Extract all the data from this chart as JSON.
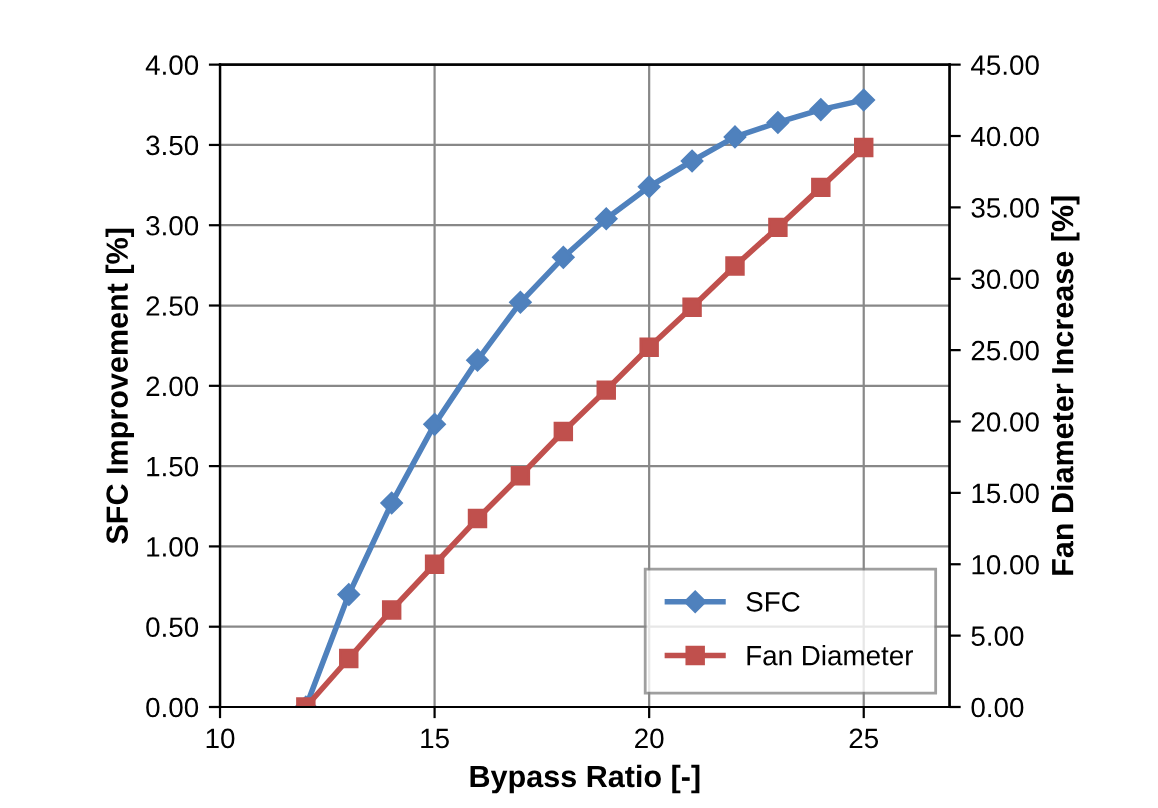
{
  "chart_data": {
    "type": "line",
    "xlabel": "Bypass Ratio [-]",
    "ylabel": "SFC Improvement [%]",
    "y2label": "Fan Diameter Increase [%]",
    "x": [
      12,
      13,
      14,
      15,
      16,
      17,
      18,
      19,
      20,
      21,
      22,
      23,
      24,
      25
    ],
    "series": [
      {
        "name": "SFC",
        "color": "#4f81bd",
        "marker": "diamond",
        "values": [
          0,
          0.7,
          1.27,
          1.76,
          2.16,
          2.52,
          2.8,
          3.04,
          3.24,
          3.4,
          3.55,
          3.64,
          3.72,
          3.78
        ]
      },
      {
        "name": "Fan Diameter",
        "color": "#c0504d",
        "marker": "square",
        "axis": "y2",
        "values": [
          0,
          3.4,
          6.8,
          10.0,
          13.2,
          16.2,
          19.3,
          22.2,
          25.2,
          28.0,
          30.9,
          33.6,
          36.4,
          39.2
        ]
      }
    ],
    "xlim": [
      10,
      27
    ],
    "xticks": [
      10,
      15,
      20,
      25
    ],
    "ylim": [
      0,
      4
    ],
    "yticks": [
      {
        "value": 0,
        "label": "0.00"
      },
      {
        "value": 0.5,
        "label": "0.50"
      },
      {
        "value": 1,
        "label": "1.00"
      },
      {
        "value": 1.5,
        "label": "1.50"
      },
      {
        "value": 2,
        "label": "2.00"
      },
      {
        "value": 2.5,
        "label": "2.50"
      },
      {
        "value": 3,
        "label": "3.00"
      },
      {
        "value": 3.5,
        "label": "3.50"
      },
      {
        "value": 4,
        "label": "4.00"
      }
    ],
    "y2lim": [
      0,
      45
    ],
    "y2ticks": [
      {
        "value": 0,
        "label": "0.00"
      },
      {
        "value": 5,
        "label": "5.00"
      },
      {
        "value": 10,
        "label": "10.00"
      },
      {
        "value": 15,
        "label": "15.00"
      },
      {
        "value": 20,
        "label": "20.00"
      },
      {
        "value": 25,
        "label": "25.00"
      },
      {
        "value": 30,
        "label": "30.00"
      },
      {
        "value": 35,
        "label": "35.00"
      },
      {
        "value": 40,
        "label": "40.00"
      },
      {
        "value": 45,
        "label": "45.00"
      }
    ],
    "grid": true,
    "legend": "bottom right",
    "line_style": "solid"
  }
}
